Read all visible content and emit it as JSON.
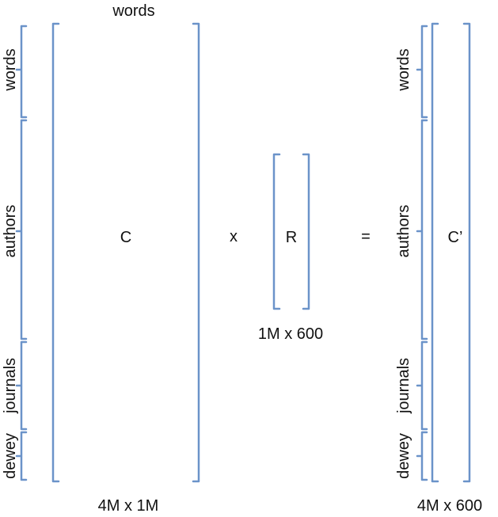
{
  "left_matrix": {
    "column_header": "words",
    "row_groups": [
      "words",
      "authors",
      "journals",
      "dewey"
    ],
    "name": "C",
    "dimensions": "4M x 1M"
  },
  "operators": {
    "multiply": "x",
    "equals": "="
  },
  "middle_matrix": {
    "name": "R",
    "dimensions": "1M x 600"
  },
  "right_matrix": {
    "row_groups": [
      "words",
      "authors",
      "journals",
      "dewey"
    ],
    "name": "C’",
    "dimensions": "4M x 600"
  },
  "colors": {
    "bracket": "#6b93c9",
    "text": "#111111"
  }
}
